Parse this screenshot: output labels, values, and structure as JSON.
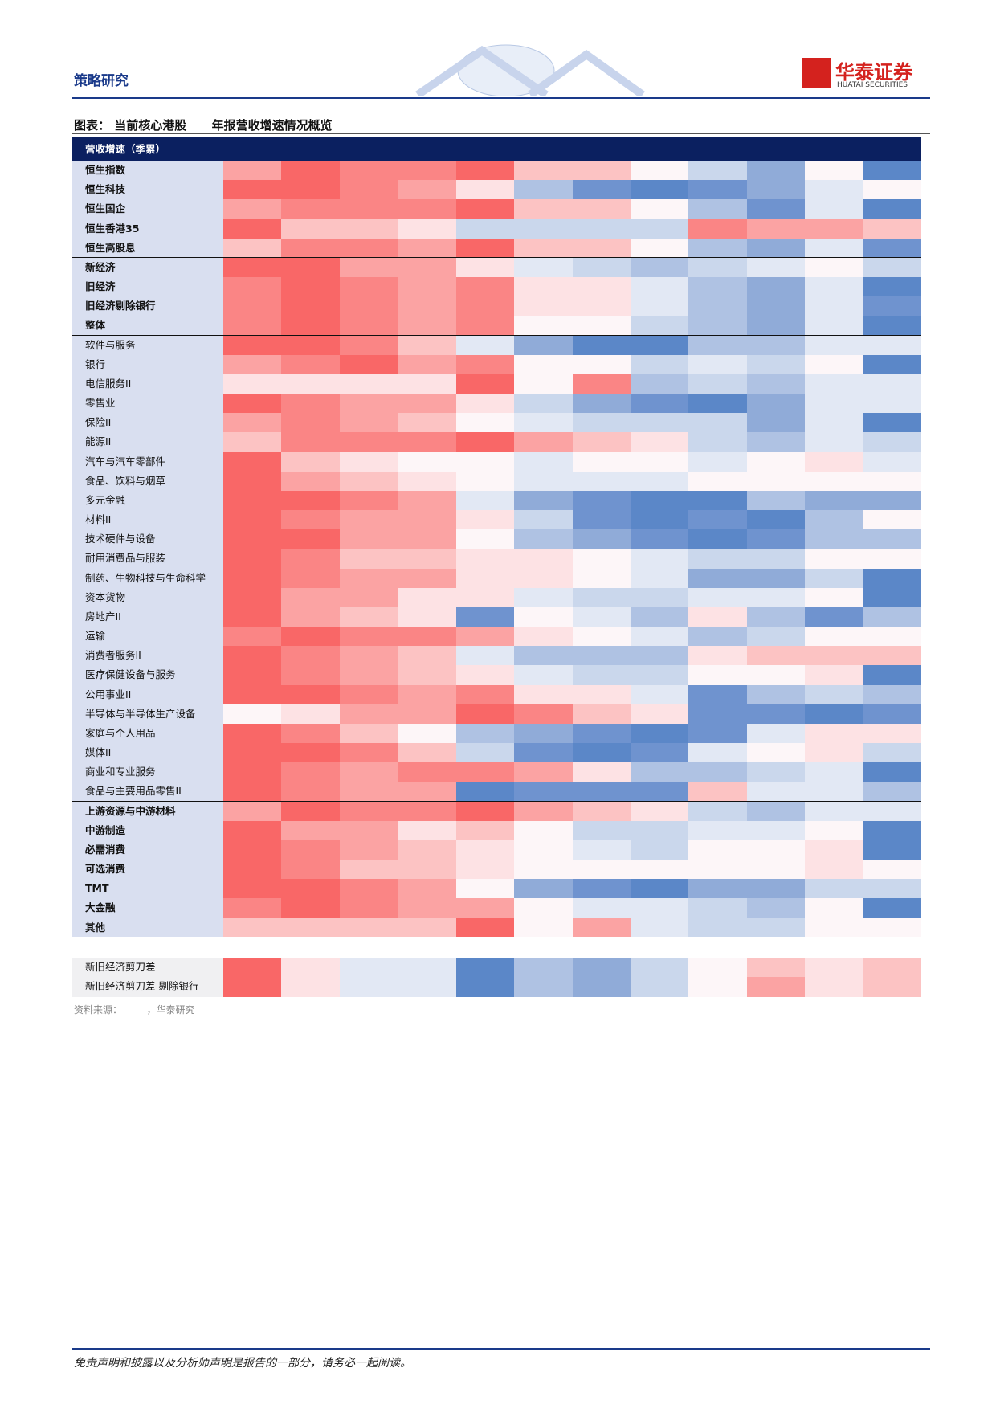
{
  "header": {
    "section": "策略研究",
    "logo_cn": "华泰证券",
    "logo_en": "HUATAI SECURITIES"
  },
  "figure": {
    "prefix": "图表：",
    "title_a": "当前核心港股",
    "title_b": "年报营收增速情况概览"
  },
  "table": {
    "header": "营收增速（季累）",
    "sections": [
      {
        "bold": true,
        "rows": [
          {
            "label": "恒生指数",
            "colors": [
              "#fba3a3",
              "#f96767",
              "#fa8585",
              "#fa8585",
              "#f96767",
              "#fcc3c3",
              "#fcc3c3",
              "#fdf6f8",
              "#cad7ec",
              "#90abd8",
              "#fdf6f8",
              "#5b87c8"
            ]
          },
          {
            "label": "恒生科技",
            "colors": [
              "#f96767",
              "#f96767",
              "#fa8585",
              "#fba3a3",
              "#fde2e4",
              "#afc2e3",
              "#6f93cf",
              "#5b87c8",
              "#6f93cf",
              "#90abd8",
              "#e2e8f4",
              "#fdf6f8"
            ]
          },
          {
            "label": "恒生国企",
            "colors": [
              "#fba3a3",
              "#fa8585",
              "#fa8585",
              "#fa8585",
              "#f96767",
              "#fcc3c3",
              "#fcc3c3",
              "#fdf6f8",
              "#afc2e3",
              "#6f93cf",
              "#e2e8f4",
              "#5b87c8"
            ]
          },
          {
            "label": "恒生香港35",
            "colors": [
              "#f96767",
              "#fcc3c3",
              "#fcc3c3",
              "#fde2e4",
              "#cad7ec",
              "#cad7ec",
              "#cad7ec",
              "#cad7ec",
              "#fa8585",
              "#fba3a3",
              "#fba3a3",
              "#fcc3c3"
            ]
          },
          {
            "label": "恒生高股息",
            "colors": [
              "#fcc3c3",
              "#fa8585",
              "#fa8585",
              "#fba3a3",
              "#f96767",
              "#fcc3c3",
              "#fcc3c3",
              "#fdf6f8",
              "#afc2e3",
              "#90abd8",
              "#e2e8f4",
              "#6f93cf"
            ]
          }
        ]
      },
      {
        "bold": true,
        "rows": [
          {
            "label": "新经济",
            "colors": [
              "#f96767",
              "#f96767",
              "#fba3a3",
              "#fba3a3",
              "#fde2e4",
              "#e2e8f4",
              "#cad7ec",
              "#afc2e3",
              "#cad7ec",
              "#e2e8f4",
              "#fdf6f8",
              "#cad7ec"
            ]
          },
          {
            "label": "旧经济",
            "colors": [
              "#fa8585",
              "#f96767",
              "#fa8585",
              "#fba3a3",
              "#fa8585",
              "#fde2e4",
              "#fde2e4",
              "#e2e8f4",
              "#afc2e3",
              "#90abd8",
              "#e2e8f4",
              "#5b87c8"
            ]
          },
          {
            "label": "旧经济剔除银行",
            "colors": [
              "#fa8585",
              "#f96767",
              "#fa8585",
              "#fba3a3",
              "#fa8585",
              "#fde2e4",
              "#fde2e4",
              "#e2e8f4",
              "#afc2e3",
              "#90abd8",
              "#e2e8f4",
              "#6f93cf"
            ]
          },
          {
            "label": "整体",
            "colors": [
              "#fa8585",
              "#f96767",
              "#fa8585",
              "#fba3a3",
              "#fa8585",
              "#fdf6f8",
              "#fdf6f8",
              "#cad7ec",
              "#afc2e3",
              "#90abd8",
              "#e2e8f4",
              "#5b87c8"
            ]
          }
        ]
      },
      {
        "bold": false,
        "rows": [
          {
            "label": "软件与服务",
            "colors": [
              "#f96767",
              "#f96767",
              "#fa8585",
              "#fcc3c3",
              "#e2e8f4",
              "#90abd8",
              "#5b87c8",
              "#5b87c8",
              "#afc2e3",
              "#afc2e3",
              "#e2e8f4",
              "#e2e8f4"
            ]
          },
          {
            "label": "银行",
            "colors": [
              "#fba3a3",
              "#fa8585",
              "#f96767",
              "#fba3a3",
              "#fa8585",
              "#fdf6f8",
              "#fdf6f8",
              "#cad7ec",
              "#e2e8f4",
              "#cad7ec",
              "#fdf6f8",
              "#5b87c8"
            ]
          },
          {
            "label": "电信服务II",
            "colors": [
              "#fde2e4",
              "#fde2e4",
              "#fde2e4",
              "#fde2e4",
              "#f96767",
              "#fdf6f8",
              "#fa8585",
              "#afc2e3",
              "#cad7ec",
              "#afc2e3",
              "#e2e8f4",
              "#e2e8f4"
            ]
          },
          {
            "label": "零售业",
            "colors": [
              "#f96767",
              "#fa8585",
              "#fba3a3",
              "#fba3a3",
              "#fde2e4",
              "#cad7ec",
              "#90abd8",
              "#6f93cf",
              "#5b87c8",
              "#90abd8",
              "#e2e8f4",
              "#e2e8f4"
            ]
          },
          {
            "label": "保险II",
            "colors": [
              "#fba3a3",
              "#fa8585",
              "#fba3a3",
              "#fcc3c3",
              "#fdf6f8",
              "#e2e8f4",
              "#cad7ec",
              "#cad7ec",
              "#cad7ec",
              "#90abd8",
              "#e2e8f4",
              "#5b87c8"
            ]
          },
          {
            "label": "能源II",
            "colors": [
              "#fcc3c3",
              "#fa8585",
              "#fa8585",
              "#fa8585",
              "#f96767",
              "#fba3a3",
              "#fcc3c3",
              "#fde2e4",
              "#cad7ec",
              "#afc2e3",
              "#e2e8f4",
              "#cad7ec"
            ]
          },
          {
            "label": "汽车与汽车零部件",
            "colors": [
              "#f96767",
              "#fcc3c3",
              "#fde2e4",
              "#fdf6f8",
              "#fdf6f8",
              "#e2e8f4",
              "#fdf6f8",
              "#fdf6f8",
              "#e2e8f4",
              "#fdf6f8",
              "#fde2e4",
              "#e2e8f4"
            ]
          },
          {
            "label": "食品、饮料与烟草",
            "colors": [
              "#f96767",
              "#fba3a3",
              "#fcc3c3",
              "#fde2e4",
              "#fdf6f8",
              "#e2e8f4",
              "#e2e8f4",
              "#e2e8f4",
              "#fdf6f8",
              "#fdf6f8",
              "#fdf6f8",
              "#fdf6f8"
            ]
          },
          {
            "label": "多元金融",
            "colors": [
              "#f96767",
              "#f96767",
              "#fa8585",
              "#fba3a3",
              "#e2e8f4",
              "#90abd8",
              "#6f93cf",
              "#5b87c8",
              "#5b87c8",
              "#afc2e3",
              "#90abd8",
              "#90abd8"
            ]
          },
          {
            "label": "材料II",
            "colors": [
              "#f96767",
              "#fa8585",
              "#fba3a3",
              "#fba3a3",
              "#fde2e4",
              "#cad7ec",
              "#6f93cf",
              "#5b87c8",
              "#6f93cf",
              "#5b87c8",
              "#afc2e3",
              "#fdf6f8"
            ]
          },
          {
            "label": "技术硬件与设备",
            "colors": [
              "#f96767",
              "#f96767",
              "#fba3a3",
              "#fba3a3",
              "#fdf6f8",
              "#afc2e3",
              "#90abd8",
              "#6f93cf",
              "#5b87c8",
              "#6f93cf",
              "#afc2e3",
              "#afc2e3"
            ]
          },
          {
            "label": "耐用消费品与服装",
            "colors": [
              "#f96767",
              "#fa8585",
              "#fcc3c3",
              "#fcc3c3",
              "#fde2e4",
              "#fde2e4",
              "#fdf6f8",
              "#e2e8f4",
              "#cad7ec",
              "#cad7ec",
              "#fdf6f8",
              "#fdf6f8"
            ]
          },
          {
            "label": "制药、生物科技与生命科学",
            "colors": [
              "#f96767",
              "#fa8585",
              "#fba3a3",
              "#fba3a3",
              "#fde2e4",
              "#fde2e4",
              "#fdf6f8",
              "#e2e8f4",
              "#90abd8",
              "#90abd8",
              "#cad7ec",
              "#5b87c8"
            ]
          },
          {
            "label": "资本货物",
            "colors": [
              "#f96767",
              "#fba3a3",
              "#fba3a3",
              "#fde2e4",
              "#fde2e4",
              "#e2e8f4",
              "#cad7ec",
              "#cad7ec",
              "#e2e8f4",
              "#e2e8f4",
              "#fdf6f8",
              "#5b87c8"
            ]
          },
          {
            "label": "房地产II",
            "colors": [
              "#f96767",
              "#fba3a3",
              "#fcc3c3",
              "#fde2e4",
              "#6f93cf",
              "#fdf6f8",
              "#e2e8f4",
              "#afc2e3",
              "#fde2e4",
              "#afc2e3",
              "#6f93cf",
              "#afc2e3"
            ]
          },
          {
            "label": "运输",
            "colors": [
              "#fa8585",
              "#f96767",
              "#fa8585",
              "#fa8585",
              "#fba3a3",
              "#fde2e4",
              "#fdf6f8",
              "#e2e8f4",
              "#afc2e3",
              "#cad7ec",
              "#fdf6f8",
              "#fdf6f8"
            ]
          },
          {
            "label": "消费者服务II",
            "colors": [
              "#f96767",
              "#fa8585",
              "#fba3a3",
              "#fcc3c3",
              "#e2e8f4",
              "#afc2e3",
              "#afc2e3",
              "#afc2e3",
              "#fde2e4",
              "#fcc3c3",
              "#fcc3c3",
              "#fcc3c3"
            ]
          },
          {
            "label": "医疗保健设备与服务",
            "colors": [
              "#f96767",
              "#fa8585",
              "#fba3a3",
              "#fcc3c3",
              "#fde2e4",
              "#e2e8f4",
              "#cad7ec",
              "#cad7ec",
              "#fdf6f8",
              "#fdf6f8",
              "#fde2e4",
              "#5b87c8"
            ]
          },
          {
            "label": "公用事业II",
            "colors": [
              "#f96767",
              "#f96767",
              "#fa8585",
              "#fba3a3",
              "#fa8585",
              "#fde2e4",
              "#fde2e4",
              "#e2e8f4",
              "#6f93cf",
              "#afc2e3",
              "#cad7ec",
              "#afc2e3"
            ]
          },
          {
            "label": "半导体与半导体生产设备",
            "colors": [
              "#fdf6f8",
              "#fde2e4",
              "#fba3a3",
              "#fba3a3",
              "#f96767",
              "#fa8585",
              "#fcc3c3",
              "#fde2e4",
              "#6f93cf",
              "#6f93cf",
              "#5b87c8",
              "#6f93cf"
            ]
          },
          {
            "label": "家庭与个人用品",
            "colors": [
              "#f96767",
              "#fa8585",
              "#fcc3c3",
              "#fdf6f8",
              "#afc2e3",
              "#90abd8",
              "#6f93cf",
              "#5b87c8",
              "#6f93cf",
              "#e2e8f4",
              "#fde2e4",
              "#fde2e4"
            ]
          },
          {
            "label": "媒体II",
            "colors": [
              "#f96767",
              "#f96767",
              "#fa8585",
              "#fcc3c3",
              "#cad7ec",
              "#6f93cf",
              "#5b87c8",
              "#6f93cf",
              "#e2e8f4",
              "#fdf6f8",
              "#fde2e4",
              "#cad7ec"
            ]
          },
          {
            "label": "商业和专业服务",
            "colors": [
              "#f96767",
              "#fa8585",
              "#fba3a3",
              "#fa8585",
              "#fa8585",
              "#fba3a3",
              "#fde2e4",
              "#afc2e3",
              "#afc2e3",
              "#cad7ec",
              "#e2e8f4",
              "#5b87c8"
            ]
          },
          {
            "label": "食品与主要用品零售II",
            "colors": [
              "#f96767",
              "#fa8585",
              "#fba3a3",
              "#fba3a3",
              "#5b87c8",
              "#6f93cf",
              "#6f93cf",
              "#6f93cf",
              "#fcc3c3",
              "#e2e8f4",
              "#e2e8f4",
              "#afc2e3"
            ]
          }
        ]
      },
      {
        "bold": true,
        "rows": [
          {
            "label": "上游资源与中游材料",
            "colors": [
              "#fba3a3",
              "#f96767",
              "#fa8585",
              "#fa8585",
              "#f96767",
              "#fba3a3",
              "#fcc3c3",
              "#fde2e4",
              "#cad7ec",
              "#afc2e3",
              "#e2e8f4",
              "#e2e8f4"
            ]
          },
          {
            "label": "中游制造",
            "colors": [
              "#f96767",
              "#fba3a3",
              "#fba3a3",
              "#fde2e4",
              "#fcc3c3",
              "#fdf6f8",
              "#cad7ec",
              "#cad7ec",
              "#e2e8f4",
              "#e2e8f4",
              "#fdf6f8",
              "#5b87c8"
            ]
          },
          {
            "label": "必需消费",
            "colors": [
              "#f96767",
              "#fa8585",
              "#fba3a3",
              "#fcc3c3",
              "#fde2e4",
              "#fdf6f8",
              "#e2e8f4",
              "#cad7ec",
              "#fdf6f8",
              "#fdf6f8",
              "#fde2e4",
              "#5b87c8"
            ]
          },
          {
            "label": "可选消费",
            "colors": [
              "#f96767",
              "#fa8585",
              "#fcc3c3",
              "#fcc3c3",
              "#fde2e4",
              "#fdf6f8",
              "#fdf6f8",
              "#fdf6f8",
              "#fdf6f8",
              "#fdf6f8",
              "#fde2e4",
              "#fdf6f8"
            ]
          },
          {
            "label": "TMT",
            "colors": [
              "#f96767",
              "#f96767",
              "#fa8585",
              "#fba3a3",
              "#fdf6f8",
              "#90abd8",
              "#6f93cf",
              "#5b87c8",
              "#90abd8",
              "#90abd8",
              "#cad7ec",
              "#cad7ec"
            ]
          },
          {
            "label": "大金融",
            "colors": [
              "#fa8585",
              "#f96767",
              "#fa8585",
              "#fba3a3",
              "#fba3a3",
              "#fdf6f8",
              "#e2e8f4",
              "#e2e8f4",
              "#cad7ec",
              "#afc2e3",
              "#fdf6f8",
              "#5b87c8"
            ]
          },
          {
            "label": "其他",
            "colors": [
              "#fcc3c3",
              "#fcc3c3",
              "#fcc3c3",
              "#fcc3c3",
              "#f96767",
              "#fdf6f8",
              "#fba3a3",
              "#e2e8f4",
              "#cad7ec",
              "#cad7ec",
              "#fdf6f8",
              "#fdf6f8"
            ]
          }
        ]
      },
      {
        "bold": false,
        "rows": [
          {
            "label": "新旧经济剪刀差",
            "colors": [
              "#f96767",
              "#fde2e4",
              "#e2e8f4",
              "#e2e8f4",
              "#5b87c8",
              "#afc2e3",
              "#90abd8",
              "#cad7ec",
              "#fdf6f8",
              "#fcc3c3",
              "#fde2e4",
              "#fcc3c3"
            ]
          },
          {
            "label": "新旧经济剪刀差 剔除银行",
            "colors": [
              "#f96767",
              "#fde2e4",
              "#e2e8f4",
              "#e2e8f4",
              "#5b87c8",
              "#afc2e3",
              "#90abd8",
              "#cad7ec",
              "#fdf6f8",
              "#fba3a3",
              "#fde2e4",
              "#fcc3c3"
            ]
          }
        ]
      }
    ]
  },
  "source": {
    "label": "资料来源：",
    "text": "，华泰研究"
  },
  "footer": {
    "disclaimer": "免责声明和披露以及分析师声明是报告的一部分，请务必一起阅读。"
  }
}
